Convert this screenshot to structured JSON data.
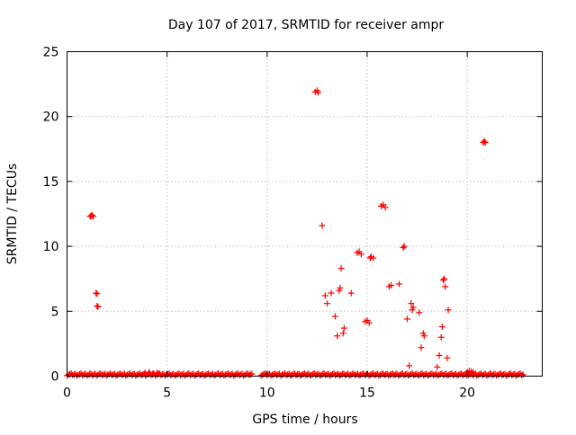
{
  "chart_data": {
    "type": "scatter",
    "title": "Day 107 of 2017, SRMTID for receiver ampr",
    "xlabel": "GPS time / hours",
    "ylabel": "SRMTID / TECUs",
    "xlim": [
      0,
      23.75
    ],
    "ylim": [
      0,
      25
    ],
    "xticks": [
      0,
      5,
      10,
      15,
      20
    ],
    "yticks": [
      0,
      5,
      10,
      15,
      20,
      25
    ],
    "grid": true,
    "marker": "plus",
    "marker_color": "#ff0000",
    "baseline_segments": [
      [
        0.0,
        9.3,
        0.05
      ],
      [
        9.7,
        22.8,
        0.05
      ]
    ],
    "series": [
      {
        "name": "SRMTID",
        "points": [
          [
            1.15,
            12.3
          ],
          [
            1.2,
            12.35
          ],
          [
            1.25,
            12.4
          ],
          [
            1.3,
            12.3
          ],
          [
            1.45,
            6.4
          ],
          [
            1.5,
            6.35
          ],
          [
            1.5,
            5.4
          ],
          [
            1.55,
            5.35
          ],
          [
            3.9,
            0.25
          ],
          [
            4.1,
            0.3
          ],
          [
            4.3,
            0.2
          ],
          [
            4.5,
            0.25
          ],
          [
            4.6,
            0.2
          ],
          [
            12.4,
            21.9
          ],
          [
            12.5,
            22.0
          ],
          [
            12.55,
            21.85
          ],
          [
            12.75,
            11.6
          ],
          [
            12.9,
            6.2
          ],
          [
            13.0,
            5.6
          ],
          [
            13.2,
            6.4
          ],
          [
            13.4,
            4.6
          ],
          [
            13.5,
            3.1
          ],
          [
            13.6,
            6.6
          ],
          [
            13.65,
            6.8
          ],
          [
            13.7,
            8.3
          ],
          [
            13.8,
            3.3
          ],
          [
            13.85,
            3.7
          ],
          [
            14.2,
            6.4
          ],
          [
            14.5,
            9.5
          ],
          [
            14.6,
            9.6
          ],
          [
            14.7,
            9.4
          ],
          [
            14.9,
            4.2
          ],
          [
            15.0,
            4.3
          ],
          [
            15.1,
            4.1
          ],
          [
            15.15,
            9.1
          ],
          [
            15.2,
            9.2
          ],
          [
            15.3,
            9.1
          ],
          [
            15.7,
            13.1
          ],
          [
            15.8,
            13.2
          ],
          [
            15.9,
            13.0
          ],
          [
            16.1,
            6.9
          ],
          [
            16.2,
            7.0
          ],
          [
            16.6,
            7.1
          ],
          [
            16.8,
            9.9
          ],
          [
            16.85,
            10.0
          ],
          [
            17.0,
            4.4
          ],
          [
            17.1,
            0.8
          ],
          [
            17.2,
            5.6
          ],
          [
            17.25,
            5.1
          ],
          [
            17.3,
            5.3
          ],
          [
            17.6,
            4.9
          ],
          [
            17.7,
            2.2
          ],
          [
            17.8,
            3.3
          ],
          [
            17.85,
            3.1
          ],
          [
            18.5,
            0.7
          ],
          [
            18.6,
            1.6
          ],
          [
            18.7,
            3.0
          ],
          [
            18.75,
            3.8
          ],
          [
            18.8,
            7.4
          ],
          [
            18.85,
            7.5
          ],
          [
            18.9,
            6.9
          ],
          [
            19.0,
            1.4
          ],
          [
            19.05,
            5.1
          ],
          [
            20.0,
            0.3
          ],
          [
            20.1,
            0.4
          ],
          [
            20.2,
            0.35
          ],
          [
            20.3,
            0.3
          ],
          [
            20.8,
            18.0
          ],
          [
            20.85,
            18.1
          ],
          [
            20.9,
            18.0
          ]
        ]
      }
    ]
  }
}
